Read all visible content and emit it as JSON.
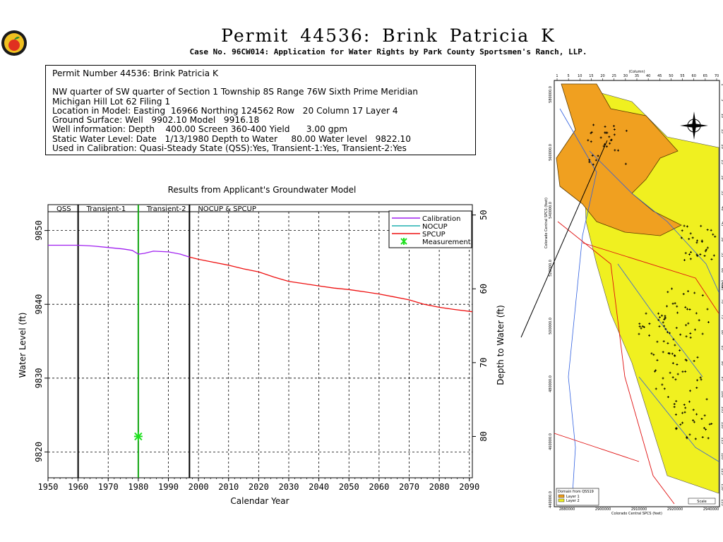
{
  "logo": {
    "icon": "apple-seal-icon",
    "colors": [
      "#e03020",
      "#2f8a2f",
      "#f0c020"
    ]
  },
  "title": "Permit 44536:  Brink Patricia K",
  "subtitle": "Case No. 96CW014: Application for Water Rights by Park County Sportsmen's Ranch, LLP.",
  "info": {
    "header": "Permit Number 44536: Brink Patricia K",
    "lines": [
      "NW quarter of SW quarter of Section 1 Township 8S Range 76W Sixth Prime Meridian",
      "Michigan Hill Lot 62 Filing 1",
      "Location in Model: Easting  16966 Northing 124562 Row   20 Column 17 Layer 4",
      "Ground Surface: Well   9902.10 Model   9916.18",
      "Well information: Depth    400.00 Screen 360-400 Yield      3.00 gpm",
      "Static Water Level: Date   1/13/1980 Depth to Water     80.00 Water level   9822.10",
      "Used in Calibration: Quasi-Steady State (QSS):Yes, Transient-1:Yes, Transient-2:Yes"
    ]
  },
  "chart_data": {
    "type": "line",
    "title": "Results from Applicant's Groundwater Model",
    "xlabel": "Calendar Year",
    "ylabel": "Water Level (ft)",
    "y2label": "Depth to Water (ft)",
    "xlim": [
      1950,
      2091
    ],
    "ylim": [
      9816.5,
      9853.5
    ],
    "y2lim_depth_to_water": [
      85.6,
      48.6
    ],
    "xticks": [
      1950,
      1960,
      1970,
      1980,
      1990,
      2000,
      2010,
      2020,
      2030,
      2040,
      2050,
      2060,
      2070,
      2080,
      2090
    ],
    "yticks": [
      9820,
      9830,
      9840,
      9850
    ],
    "y2ticks": [
      80,
      70,
      60,
      50
    ],
    "grid": true,
    "periods": [
      {
        "label": "QSS",
        "start": 1950,
        "end": 1960
      },
      {
        "label": "Transient-1",
        "start": 1960,
        "end": 1980
      },
      {
        "label": "Transient-2",
        "start": 1980,
        "end": 1997
      },
      {
        "label": "NOCUP  &  SPCUP",
        "start": 1997,
        "end": 2091
      }
    ],
    "period_boundaries": [
      1960,
      1997
    ],
    "measurement_year_line": 1980,
    "legend_position": "top-right",
    "series": [
      {
        "name": "Calibration",
        "color": "#a020f0",
        "x": [
          1950,
          1960,
          1965,
          1970,
          1975,
          1978,
          1980,
          1982,
          1985,
          1990,
          1994,
          1997
        ],
        "y": [
          9848.0,
          9848.0,
          9847.9,
          9847.7,
          9847.5,
          9847.3,
          9846.8,
          9846.9,
          9847.2,
          9847.1,
          9846.8,
          9846.4
        ]
      },
      {
        "name": "NOCUP",
        "color": "#20b0b0",
        "x": [],
        "y": []
      },
      {
        "name": "SPCUP",
        "color": "#ee1010",
        "x": [
          1997,
          2000,
          2005,
          2010,
          2015,
          2020,
          2025,
          2030,
          2035,
          2040,
          2045,
          2050,
          2055,
          2060,
          2065,
          2070,
          2075,
          2080,
          2085,
          2091
        ],
        "y": [
          9846.4,
          9846.1,
          9845.7,
          9845.3,
          9844.8,
          9844.4,
          9843.7,
          9843.1,
          9842.8,
          9842.5,
          9842.2,
          9842.0,
          9841.7,
          9841.4,
          9841.0,
          9840.6,
          9840.0,
          9839.6,
          9839.3,
          9839.0
        ]
      },
      {
        "name": "Measurement",
        "color": "#20e020",
        "marker": true,
        "x": [
          1980
        ],
        "y": [
          9822.1
        ]
      }
    ]
  },
  "map": {
    "top_label": "(Column)",
    "left_label": "Colorado Central SPCS (feet)",
    "right_label": "(Row)",
    "bottom_label": "Colorado Central SPCS (feet)",
    "col_ticks": [
      "1",
      "5",
      "10",
      "15",
      "20",
      "25",
      "30",
      "35",
      "40",
      "45",
      "50",
      "55",
      "60",
      "65",
      "70"
    ],
    "left_ticks": [
      "580000.0",
      "560000.0",
      "540000.0",
      "520000.0",
      "500000.0",
      "480000.0",
      "460000.0",
      "440000.0"
    ],
    "bottom_ticks": [
      "2880000",
      "2900000",
      "2910000",
      "2920000",
      "2940000"
    ],
    "row_ticks": [
      "1",
      "5",
      "10",
      "15",
      "20",
      "25",
      "30",
      "35",
      "40",
      "45",
      "50",
      "55",
      "60",
      "65",
      "70",
      "75",
      "80",
      "85",
      "90",
      "95",
      "100",
      "105",
      "110",
      "115",
      "120",
      "125",
      "130",
      "135"
    ],
    "legend_title": "Domain from QSS19",
    "legend_items": [
      {
        "label": "Layer 1",
        "color": "#f0a020"
      },
      {
        "label": "Layer 2",
        "color": "#f0f020"
      }
    ],
    "scale_label": "Scale",
    "north_icon": "compass-rose-icon",
    "layer1_color": "#f0a020",
    "layer2_color": "#f0f020"
  }
}
